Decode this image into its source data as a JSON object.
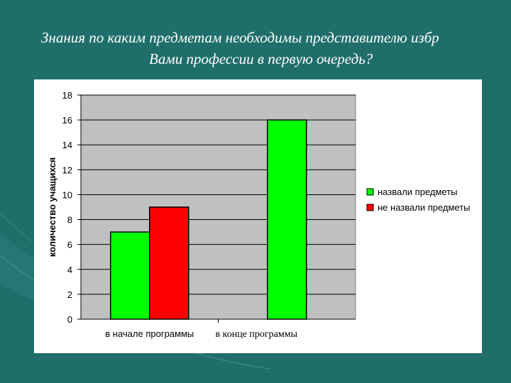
{
  "slide": {
    "title_line1": "Знания по каким предметам необходимы представителю избр",
    "title_line2": "Вами профессии в первую очередь?"
  },
  "colors": {
    "background": "#1f6e6a",
    "plot_area": "#c0c0c0",
    "named": "#00ff00",
    "not_named": "#ff0000"
  },
  "chart_data": {
    "type": "bar",
    "title": "",
    "xlabel": "",
    "ylabel": "количество учащихся",
    "categories": [
      "в начале программы",
      "в конце программы"
    ],
    "series": [
      {
        "name": "назвали предметы",
        "values": [
          7,
          16
        ],
        "color": "#00ff00"
      },
      {
        "name": "не назвали предметы",
        "values": [
          9,
          null
        ],
        "color": "#ff0000"
      }
    ],
    "ylim": [
      0,
      18
    ],
    "yticks": [
      0,
      2,
      4,
      6,
      8,
      10,
      12,
      14,
      16,
      18
    ],
    "grid": true,
    "legend_position": "right"
  }
}
